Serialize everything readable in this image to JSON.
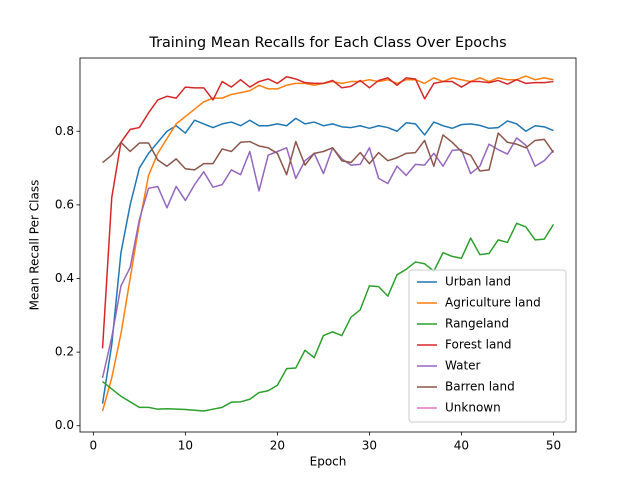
{
  "chart_data": {
    "type": "line",
    "title": "Training Mean Recalls for Each Class Over Epochs",
    "xlabel": "Epoch",
    "ylabel": "Mean Recall Per Class",
    "x": [
      1,
      2,
      3,
      4,
      5,
      6,
      7,
      8,
      9,
      10,
      11,
      12,
      13,
      14,
      15,
      16,
      17,
      18,
      19,
      20,
      21,
      22,
      23,
      24,
      25,
      26,
      27,
      28,
      29,
      30,
      31,
      32,
      33,
      34,
      35,
      36,
      37,
      38,
      39,
      40,
      41,
      42,
      43,
      44,
      45,
      46,
      47,
      48,
      49,
      50
    ],
    "xlim": [
      -1.45,
      52.45
    ],
    "xticks": [
      0,
      10,
      20,
      30,
      40,
      50
    ],
    "ylim": [
      -0.017,
      0.999
    ],
    "yticks": [
      {
        "value": 0,
        "label": "0.0"
      },
      0.2,
      0.4,
      0.6,
      0.8
    ],
    "legend": "lower right",
    "series": [
      {
        "name": "Urban land",
        "color": "#1f77b4",
        "values": [
          0.06,
          0.22,
          0.47,
          0.6,
          0.7,
          0.74,
          0.77,
          0.8,
          0.815,
          0.795,
          0.83,
          0.82,
          0.81,
          0.82,
          0.825,
          0.815,
          0.83,
          0.815,
          0.815,
          0.82,
          0.815,
          0.835,
          0.82,
          0.825,
          0.815,
          0.82,
          0.812,
          0.81,
          0.815,
          0.808,
          0.815,
          0.81,
          0.8,
          0.823,
          0.82,
          0.79,
          0.825,
          0.815,
          0.808,
          0.818,
          0.82,
          0.816,
          0.808,
          0.81,
          0.828,
          0.82,
          0.8,
          0.815,
          0.812,
          0.802
        ]
      },
      {
        "name": "Agriculture land",
        "color": "#ff7f0e",
        "values": [
          0.04,
          0.13,
          0.25,
          0.4,
          0.55,
          0.68,
          0.74,
          0.78,
          0.82,
          0.84,
          0.86,
          0.88,
          0.89,
          0.89,
          0.9,
          0.905,
          0.91,
          0.925,
          0.915,
          0.915,
          0.925,
          0.93,
          0.93,
          0.925,
          0.93,
          0.935,
          0.93,
          0.935,
          0.935,
          0.94,
          0.935,
          0.94,
          0.93,
          0.94,
          0.94,
          0.93,
          0.945,
          0.935,
          0.945,
          0.94,
          0.935,
          0.945,
          0.935,
          0.945,
          0.94,
          0.94,
          0.95,
          0.94,
          0.945,
          0.94
        ]
      },
      {
        "name": "Rangeland",
        "color": "#2ca02c",
        "values": [
          0.12,
          0.1,
          0.08,
          0.065,
          0.05,
          0.05,
          0.045,
          0.046,
          0.045,
          0.044,
          0.042,
          0.04,
          0.045,
          0.05,
          0.064,
          0.065,
          0.072,
          0.09,
          0.095,
          0.11,
          0.155,
          0.157,
          0.205,
          0.185,
          0.245,
          0.255,
          0.245,
          0.295,
          0.315,
          0.38,
          0.378,
          0.352,
          0.41,
          0.425,
          0.445,
          0.44,
          0.42,
          0.47,
          0.46,
          0.455,
          0.51,
          0.465,
          0.468,
          0.505,
          0.498,
          0.55,
          0.54,
          0.505,
          0.507,
          0.547
        ]
      },
      {
        "name": "Forest land",
        "color": "#d62728",
        "values": [
          0.21,
          0.62,
          0.77,
          0.805,
          0.81,
          0.85,
          0.885,
          0.895,
          0.89,
          0.92,
          0.918,
          0.918,
          0.885,
          0.935,
          0.92,
          0.94,
          0.92,
          0.935,
          0.942,
          0.93,
          0.948,
          0.942,
          0.932,
          0.93,
          0.93,
          0.938,
          0.918,
          0.922,
          0.938,
          0.918,
          0.938,
          0.945,
          0.925,
          0.945,
          0.942,
          0.888,
          0.93,
          0.935,
          0.935,
          0.92,
          0.935,
          0.935,
          0.932,
          0.938,
          0.928,
          0.94,
          0.93,
          0.932,
          0.932,
          0.935
        ]
      },
      {
        "name": "Water",
        "color": "#9467bd",
        "values": [
          0.13,
          0.24,
          0.38,
          0.43,
          0.56,
          0.645,
          0.65,
          0.592,
          0.65,
          0.612,
          0.655,
          0.69,
          0.648,
          0.655,
          0.695,
          0.682,
          0.745,
          0.638,
          0.735,
          0.745,
          0.755,
          0.672,
          0.72,
          0.74,
          0.685,
          0.755,
          0.725,
          0.708,
          0.71,
          0.755,
          0.672,
          0.658,
          0.705,
          0.68,
          0.71,
          0.708,
          0.74,
          0.705,
          0.748,
          0.75,
          0.685,
          0.705,
          0.765,
          0.75,
          0.738,
          0.782,
          0.762,
          0.705,
          0.72,
          0.748
        ]
      },
      {
        "name": "Barren land",
        "color": "#8c564b",
        "values": [
          0.715,
          0.735,
          0.77,
          0.745,
          0.768,
          0.768,
          0.722,
          0.705,
          0.725,
          0.698,
          0.695,
          0.712,
          0.712,
          0.752,
          0.745,
          0.77,
          0.772,
          0.76,
          0.755,
          0.74,
          0.682,
          0.772,
          0.708,
          0.74,
          0.745,
          0.755,
          0.72,
          0.715,
          0.742,
          0.712,
          0.742,
          0.72,
          0.728,
          0.74,
          0.742,
          0.775,
          0.705,
          0.79,
          0.77,
          0.745,
          0.735,
          0.692,
          0.695,
          0.795,
          0.77,
          0.765,
          0.755,
          0.775,
          0.778,
          0.742
        ]
      },
      {
        "name": "Unknown",
        "color": "#e377c2",
        "values": [
          null,
          null,
          null,
          null,
          null,
          null,
          null,
          null,
          null,
          null,
          null,
          null,
          null,
          null,
          null,
          null,
          null,
          null,
          null,
          null,
          null,
          null,
          null,
          null,
          null,
          null,
          null,
          null,
          null,
          null,
          null,
          null,
          null,
          null,
          null,
          null,
          null,
          null,
          null,
          null,
          null,
          null,
          null,
          null,
          null,
          null,
          null,
          null,
          null,
          null
        ]
      }
    ]
  }
}
